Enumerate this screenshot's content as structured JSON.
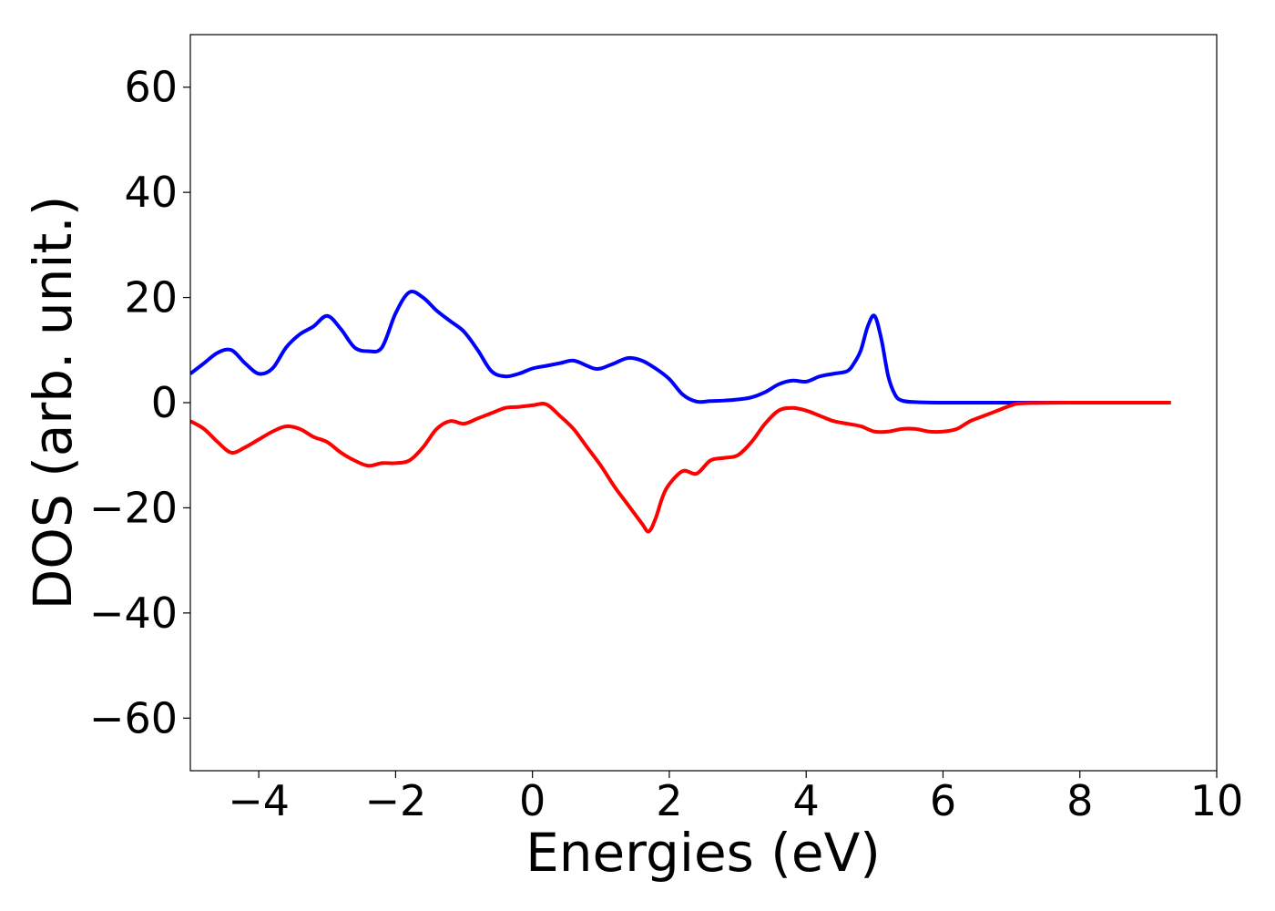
{
  "chart_data": {
    "type": "line",
    "title": "",
    "xlabel": "Energies (eV)",
    "ylabel": "DOS (arb. unit.)",
    "xlim": [
      -5,
      10
    ],
    "ylim": [
      -70,
      70
    ],
    "xticks": [
      -4,
      -2,
      0,
      2,
      4,
      6,
      8,
      10
    ],
    "xtick_labels": [
      "−4",
      "−2",
      "0",
      "2",
      "4",
      "6",
      "8",
      "10"
    ],
    "yticks": [
      60,
      40,
      20,
      0,
      -20,
      -40,
      -60
    ],
    "ytick_labels": [
      "60",
      "40",
      "20",
      "0",
      "−20",
      "−40",
      "−60"
    ],
    "grid": false,
    "legend": "none",
    "series": [
      {
        "color": "#0000ff",
        "x": [
          -5.0,
          -4.8,
          -4.6,
          -4.4,
          -4.2,
          -4.0,
          -3.8,
          -3.6,
          -3.4,
          -3.2,
          -3.0,
          -2.8,
          -2.6,
          -2.4,
          -2.2,
          -2.0,
          -1.8,
          -1.6,
          -1.4,
          -1.2,
          -1.0,
          -0.8,
          -0.6,
          -0.4,
          -0.2,
          0.0,
          0.2,
          0.4,
          0.6,
          0.8,
          0.9,
          1.0,
          1.2,
          1.4,
          1.6,
          1.8,
          2.0,
          2.2,
          2.4,
          2.6,
          2.8,
          3.0,
          3.2,
          3.4,
          3.6,
          3.8,
          4.0,
          4.2,
          4.4,
          4.6,
          4.7,
          4.8,
          4.9,
          5.0,
          5.1,
          5.2,
          5.3,
          5.4,
          5.6,
          6.0,
          7.0,
          8.0,
          9.33
        ],
        "y": [
          5.5,
          7.5,
          9.5,
          10.0,
          7.5,
          5.5,
          6.5,
          10.5,
          13.0,
          14.5,
          16.5,
          14.0,
          10.5,
          9.8,
          10.5,
          17.0,
          21.0,
          20.0,
          17.5,
          15.5,
          13.5,
          10.0,
          6.0,
          5.0,
          5.5,
          6.5,
          7.0,
          7.5,
          8.0,
          7.0,
          6.5,
          6.5,
          7.5,
          8.5,
          8.0,
          6.5,
          4.5,
          1.5,
          0.2,
          0.3,
          0.4,
          0.6,
          1.0,
          2.0,
          3.5,
          4.2,
          4.0,
          5.0,
          5.5,
          6.0,
          7.5,
          10.0,
          14.5,
          16.5,
          12.0,
          5.0,
          1.5,
          0.4,
          0.1,
          0.0,
          0.0,
          0.0,
          0.0
        ]
      },
      {
        "color": "#ff0000",
        "x": [
          -5.0,
          -4.8,
          -4.6,
          -4.4,
          -4.2,
          -4.0,
          -3.8,
          -3.6,
          -3.4,
          -3.2,
          -3.0,
          -2.8,
          -2.6,
          -2.4,
          -2.2,
          -2.0,
          -1.8,
          -1.6,
          -1.4,
          -1.2,
          -1.0,
          -0.8,
          -0.6,
          -0.4,
          -0.2,
          0.0,
          0.2,
          0.4,
          0.6,
          0.8,
          1.0,
          1.2,
          1.4,
          1.6,
          1.7,
          1.8,
          1.9,
          2.0,
          2.2,
          2.4,
          2.6,
          2.8,
          3.0,
          3.2,
          3.4,
          3.6,
          3.8,
          4.0,
          4.2,
          4.4,
          4.6,
          4.8,
          5.0,
          5.2,
          5.4,
          5.6,
          5.8,
          6.0,
          6.2,
          6.4,
          6.6,
          6.8,
          7.0,
          7.2,
          8.0,
          9.33
        ],
        "y": [
          -3.5,
          -5.0,
          -7.5,
          -9.5,
          -8.5,
          -7.0,
          -5.5,
          -4.5,
          -5.0,
          -6.5,
          -7.5,
          -9.5,
          -11.0,
          -12.0,
          -11.5,
          -11.5,
          -11.0,
          -8.5,
          -5.0,
          -3.5,
          -4.0,
          -3.0,
          -2.0,
          -1.0,
          -0.8,
          -0.5,
          -0.3,
          -2.5,
          -5.0,
          -8.5,
          -12.0,
          -16.0,
          -19.5,
          -23.0,
          -24.5,
          -22.0,
          -18.0,
          -15.5,
          -13.0,
          -13.5,
          -11.0,
          -10.5,
          -10.0,
          -7.5,
          -4.0,
          -1.5,
          -1.0,
          -1.5,
          -2.5,
          -3.5,
          -4.0,
          -4.5,
          -5.5,
          -5.5,
          -5.0,
          -5.0,
          -5.5,
          -5.5,
          -5.0,
          -3.5,
          -2.5,
          -1.5,
          -0.5,
          -0.1,
          0.0,
          0.0
        ]
      }
    ]
  }
}
